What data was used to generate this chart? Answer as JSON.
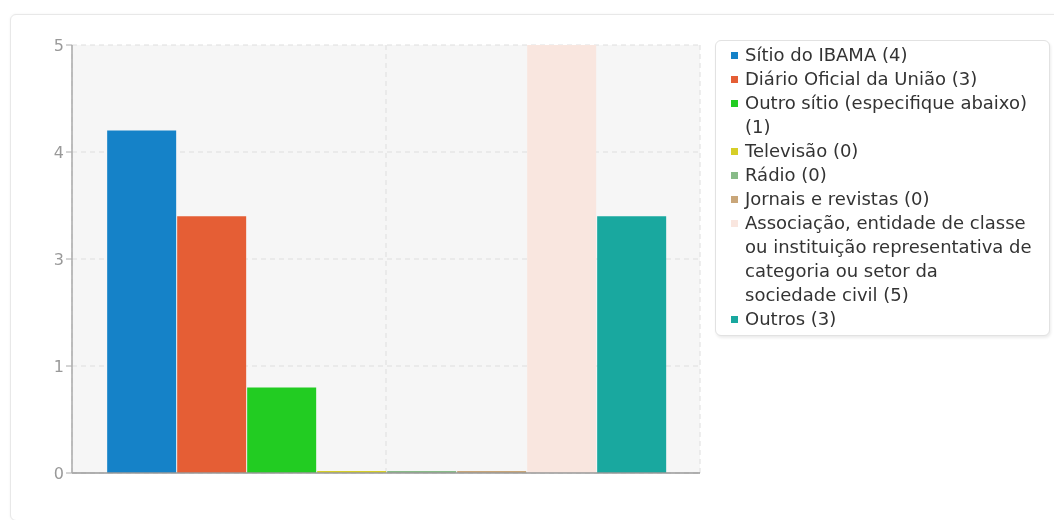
{
  "chart_data": {
    "type": "bar",
    "categories": [
      null
    ],
    "series": [
      {
        "name": "Sítio do IBAMA (4)",
        "color": "#1582c8",
        "values": [
          4
        ]
      },
      {
        "name": "Diário Oficial da União (3)",
        "color": "#e55e35",
        "values": [
          3
        ]
      },
      {
        "name": "Outro sítio (especifique abaixo) (1)",
        "color": "#22cc22",
        "values": [
          1
        ]
      },
      {
        "name": "Televisão (0)",
        "color": "#d6ce28",
        "values": [
          0
        ]
      },
      {
        "name": "Rádio (0)",
        "color": "#88bb88",
        "values": [
          0
        ]
      },
      {
        "name": "Jornais e revistas (0)",
        "color": "#c9a679",
        "values": [
          0
        ]
      },
      {
        "name": "Associação, entidade de classe ou instituição representativa de categoria ou setor da sociedade civil (5)",
        "color": "#f9e6df",
        "values": [
          5
        ]
      },
      {
        "name": "Outros (3)",
        "color": "#19a89f",
        "values": [
          3
        ]
      }
    ],
    "ylim": [
      0,
      5
    ],
    "yticks": [
      0,
      {
        "value": 1.25,
        "label": "1"
      },
      {
        "value": 2.5,
        "label": "3"
      },
      {
        "value": 3.75,
        "label": "4"
      },
      5
    ],
    "grid": true,
    "legend": "top right"
  }
}
